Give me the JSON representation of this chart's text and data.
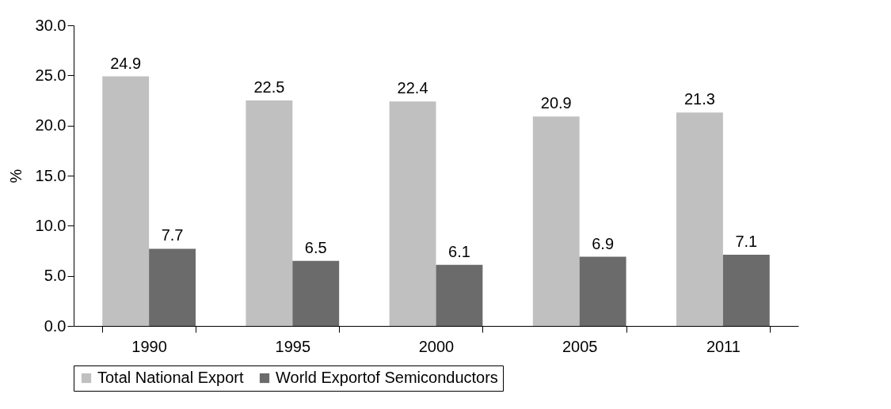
{
  "chart_data": {
    "type": "bar",
    "ylabel": "%",
    "categories": [
      "1990",
      "1995",
      "2000",
      "2005",
      "2011"
    ],
    "series": [
      {
        "name": "Total National Export",
        "color": "#c0c0c0",
        "values": [
          24.9,
          22.5,
          22.4,
          20.9,
          21.3
        ]
      },
      {
        "name": "World Exportof Semiconductors",
        "color": "#6b6b6b",
        "values": [
          7.7,
          6.5,
          6.1,
          6.9,
          7.1
        ]
      }
    ],
    "ylim": [
      0,
      30
    ],
    "yticks": [
      {
        "value": 0,
        "label": "0.0"
      },
      {
        "value": 5,
        "label": "5.0"
      },
      {
        "value": 10,
        "label": "10.0"
      },
      {
        "value": 15,
        "label": "15.0"
      },
      {
        "value": 20,
        "label": "20.0"
      },
      {
        "value": 25,
        "label": "25.0"
      },
      {
        "value": 30,
        "label": "30.0"
      }
    ],
    "data_labels": true,
    "grid": false,
    "legend": "bottom"
  }
}
